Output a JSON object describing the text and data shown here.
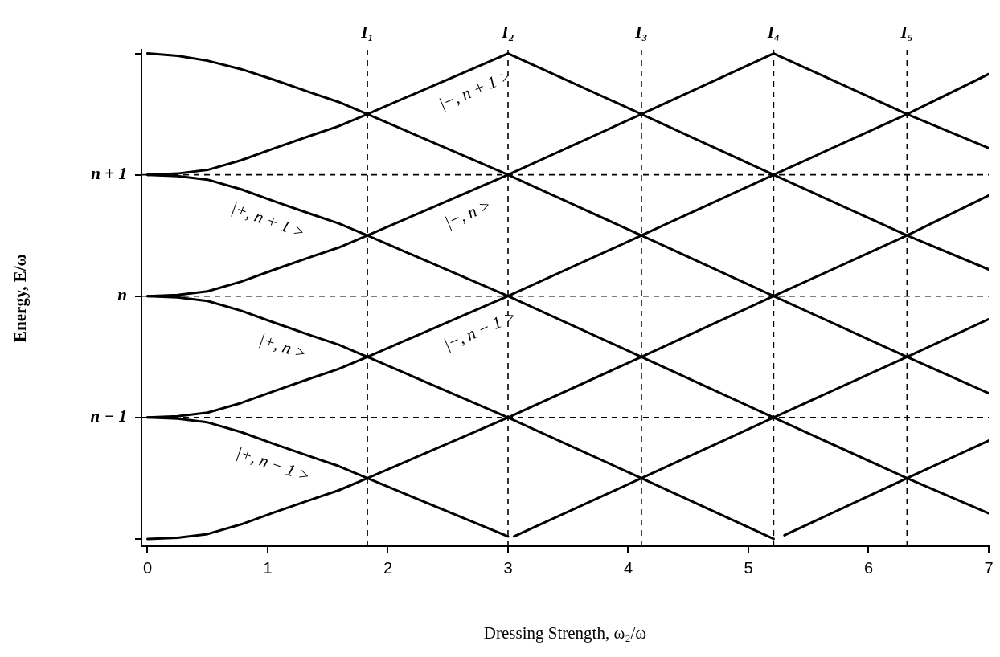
{
  "chart_data": {
    "type": "line",
    "xlabel": "Dressing Strength, ω₂/ω",
    "ylabel": "Energy, E/ω",
    "xlim": [
      -0.05,
      7
    ],
    "ylim": [
      -2.06,
      2.03
    ],
    "xticks": [
      0,
      1,
      2,
      3,
      4,
      5,
      6,
      7
    ],
    "yticks": [
      {
        "value": -2,
        "label": null
      },
      {
        "value": -1,
        "label": "n − 1"
      },
      {
        "value": 0,
        "label": "n"
      },
      {
        "value": 1,
        "label": "n + 1"
      },
      {
        "value": 2,
        "label": null
      }
    ],
    "series": [
      {
        "color": "#000000",
        "x": [
          0,
          0.25,
          0.5,
          0.78,
          1.06,
          1.35,
          1.59,
          1.83,
          3.0
        ],
        "values": [
          1,
          1.01,
          1.04,
          1.12,
          1.22,
          1.32,
          1.4,
          1.5,
          2.0
        ]
      },
      {
        "color": "#000000",
        "x": [
          0,
          0.25,
          0.5,
          0.78,
          1.06,
          1.35,
          1.59,
          1.83,
          3.0,
          4.11,
          5.21
        ],
        "values": [
          0,
          0.01,
          0.04,
          0.12,
          0.22,
          0.32,
          0.4,
          0.5,
          1.0,
          1.5,
          2.0
        ]
      },
      {
        "color": "#000000",
        "x": [
          0,
          0.25,
          0.5,
          0.78,
          1.06,
          1.35,
          1.59,
          1.83,
          3.0,
          4.11,
          5.21,
          6.32,
          7.0
        ],
        "values": [
          -1,
          -0.99,
          -0.96,
          -0.88,
          -0.78,
          -0.68,
          -0.6,
          -0.5,
          0,
          0.5,
          1.0,
          1.5,
          1.83
        ]
      },
      {
        "color": "#000000",
        "x": [
          0,
          0.25,
          0.5,
          0.78,
          1.06,
          1.35,
          1.59,
          1.83,
          3.0,
          4.11,
          5.21,
          6.32,
          7.0
        ],
        "values": [
          -2,
          -1.99,
          -1.96,
          -1.88,
          -1.78,
          -1.68,
          -1.6,
          -1.5,
          -1.0,
          -0.5,
          0,
          0.5,
          0.83
        ]
      },
      {
        "color": "#000000",
        "x": [
          3.05,
          4.11,
          5.21,
          6.32,
          7.0
        ],
        "values": [
          -1.98,
          -1.5,
          -1.0,
          -0.5,
          -0.19
        ]
      },
      {
        "color": "#000000",
        "x": [
          5.3,
          6.32,
          7.0
        ],
        "values": [
          -1.97,
          -1.5,
          -1.19
        ]
      },
      {
        "color": "#000000",
        "x": [
          0,
          0.25,
          0.5,
          0.78,
          1.06,
          1.35,
          1.59,
          1.83,
          3.0,
          4.11,
          5.21,
          6.32,
          7.0
        ],
        "values": [
          2,
          1.98,
          1.94,
          1.87,
          1.78,
          1.68,
          1.6,
          1.5,
          1.0,
          0.5,
          0,
          -0.5,
          -0.8
        ]
      },
      {
        "color": "#000000",
        "x": [
          0,
          0.25,
          0.5,
          0.78,
          1.06,
          1.35,
          1.59,
          1.83,
          3.0,
          4.11,
          5.21,
          6.32,
          7.0
        ],
        "values": [
          1,
          0.99,
          0.96,
          0.88,
          0.78,
          0.68,
          0.6,
          0.5,
          0,
          -0.5,
          -1.0,
          -1.5,
          -1.79
        ]
      },
      {
        "color": "#000000",
        "x": [
          0,
          0.25,
          0.5,
          0.78,
          1.06,
          1.35,
          1.59,
          1.83,
          3.0,
          4.11,
          5.21
        ],
        "values": [
          0,
          -0.01,
          -0.04,
          -0.12,
          -0.22,
          -0.32,
          -0.4,
          -0.5,
          -1.0,
          -1.5,
          -2.0
        ]
      },
      {
        "color": "#000000",
        "x": [
          0,
          0.25,
          0.5,
          0.78,
          1.06,
          1.35,
          1.59,
          1.83,
          3.0
        ],
        "values": [
          -1,
          -1.01,
          -1.04,
          -1.12,
          -1.22,
          -1.32,
          -1.4,
          -1.5,
          -1.98
        ]
      },
      {
        "color": "#000000",
        "x": [
          3.0,
          4.11,
          5.21,
          6.32,
          7.0
        ],
        "values": [
          2.0,
          1.5,
          1.0,
          0.5,
          0.22
        ]
      },
      {
        "color": "#000000",
        "x": [
          5.21,
          6.32,
          7.0
        ],
        "values": [
          2.0,
          1.5,
          1.22
        ]
      }
    ],
    "ref_lines": [
      {
        "axis": "x",
        "value": 1.83,
        "label": "I₁",
        "line_style": "dashed"
      },
      {
        "axis": "x",
        "value": 3.0,
        "label": "I₂",
        "line_style": "dashed"
      },
      {
        "axis": "x",
        "value": 4.11,
        "label": "I₃",
        "line_style": "dashed"
      },
      {
        "axis": "x",
        "value": 5.21,
        "label": "I₄",
        "line_style": "dashed"
      },
      {
        "axis": "x",
        "value": 6.32,
        "label": "I₅",
        "line_style": "dashed"
      },
      {
        "axis": "y",
        "value": 1,
        "line_style": "dashed"
      },
      {
        "axis": "y",
        "value": 0,
        "line_style": "dashed"
      },
      {
        "axis": "y",
        "value": -1,
        "line_style": "dashed"
      }
    ],
    "annotations": [
      {
        "text": "|+, n + 1 >",
        "x": 1.06,
        "y": 0.78
      },
      {
        "text": "|+, n >",
        "x": 1.18,
        "y": -0.26
      },
      {
        "text": "|+, n − 1 >",
        "x": 1.1,
        "y": -1.23
      },
      {
        "text": "|−, n + 1 >",
        "x": 2.66,
        "y": 1.85
      },
      {
        "text": "|−, n >",
        "x": 2.6,
        "y": 0.83
      },
      {
        "text": "|−, n − 1 >",
        "x": 2.7,
        "y": -0.13
      }
    ]
  }
}
